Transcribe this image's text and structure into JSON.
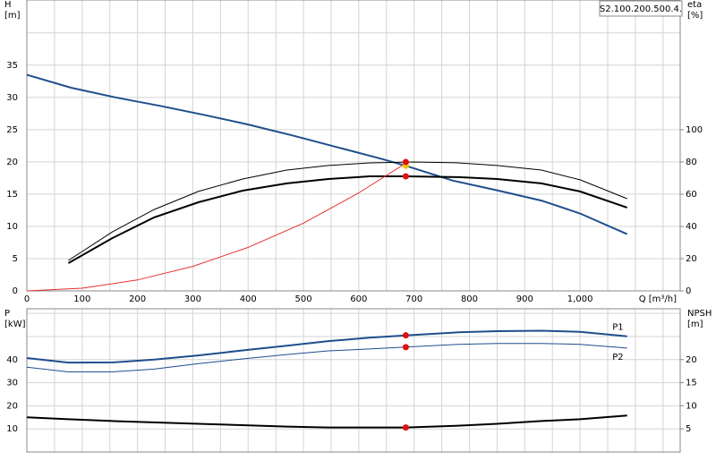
{
  "chart_data": [
    {
      "type": "line",
      "title": "S2.100.200.500.4.",
      "xlabel": "Q [m³/h]",
      "ylabel": [
        "H",
        "[m]"
      ],
      "y2label": [
        "eta",
        "[%]"
      ],
      "xlim": [
        0,
        1181
      ],
      "xticks": [
        0,
        100,
        200,
        300,
        400,
        500,
        600,
        700,
        800,
        900,
        {
          "value": 1000,
          "label": "1,000"
        }
      ],
      "xminor": [
        50,
        150,
        250,
        350,
        450,
        550,
        650,
        750,
        850,
        950,
        1050,
        1100,
        1150
      ],
      "ylim": [
        0,
        45.1
      ],
      "yticks": [
        0,
        5,
        10,
        15,
        20,
        25,
        30,
        35
      ],
      "yminor": [
        40
      ],
      "y2lim": [
        0,
        180.5
      ],
      "y2ticks": [
        0,
        20,
        40,
        60,
        80,
        100
      ],
      "grid": true,
      "series": [
        {
          "color": "#1f4e8c",
          "width": 2,
          "x": [
            0,
            80,
            160,
            240,
            320,
            400,
            480,
            560,
            640,
            685,
            770,
            850,
            930,
            1000,
            1085
          ],
          "values": [
            33.5,
            31.5,
            30,
            28.7,
            27.3,
            25.8,
            24.1,
            22.3,
            20.5,
            19.4,
            17.1,
            15.6,
            14,
            12,
            8.8
          ]
        },
        {
          "color": "#000000",
          "width": 1,
          "axis": "y2",
          "x": [
            75,
            155,
            230,
            310,
            390,
            470,
            545,
            620,
            700,
            780,
            850,
            930,
            1000,
            1085
          ],
          "values": [
            18.9,
            36.7,
            50.5,
            61.7,
            69.4,
            75,
            77.8,
            79.4,
            80,
            79.4,
            77.8,
            75,
            68.9,
            57.2
          ]
        },
        {
          "color": "#000000",
          "width": 2,
          "axis": "y2",
          "x": [
            75,
            155,
            230,
            310,
            390,
            470,
            545,
            620,
            685,
            780,
            850,
            930,
            1000,
            1085
          ],
          "values": [
            17.2,
            32.8,
            45.6,
            55,
            62.2,
            66.7,
            69.4,
            71.1,
            71.1,
            70.6,
            69.4,
            66.7,
            61.7,
            51.7
          ]
        },
        {
          "color": "#e83030",
          "width": 1,
          "x": [
            0,
            100,
            200,
            300,
            400,
            500,
            600,
            685
          ],
          "values": [
            0,
            0.42,
            1.69,
            3.8,
            6.75,
            10.5,
            15.2,
            19.8
          ]
        },
        {
          "color": "#f5c400",
          "style": "points",
          "x": [
            685
          ],
          "values": [
            19.4
          ]
        },
        {
          "color": "#e01010",
          "style": "points",
          "axis": "y2",
          "x": [
            685,
            685
          ],
          "values": [
            80,
            71.1
          ]
        }
      ]
    },
    {
      "type": "line",
      "ylabel": [
        "P",
        "[kW]"
      ],
      "y2label": [
        "NPSH",
        "[m]"
      ],
      "xlim": [
        0,
        1181
      ],
      "xticks": [
        0,
        100,
        200,
        300,
        400,
        500,
        600,
        700,
        800,
        900,
        1000
      ],
      "xminor": [
        50,
        150,
        250,
        350,
        450,
        550,
        650,
        750,
        850,
        950,
        1050,
        1100,
        1150
      ],
      "ylim": [
        0,
        62
      ],
      "yticks": [
        10,
        20,
        30,
        40
      ],
      "yminor": [
        50,
        60
      ],
      "y2lim": [
        0,
        31
      ],
      "y2ticks": [
        5,
        10,
        15,
        20
      ],
      "grid": true,
      "series": [
        {
          "name": "P1",
          "color": "#1f4e8c",
          "width": 2,
          "x": [
            0,
            75,
            155,
            230,
            310,
            390,
            470,
            545,
            620,
            685,
            780,
            850,
            930,
            1000,
            1085
          ],
          "values": [
            40.7,
            38.7,
            38.8,
            40,
            41.8,
            44,
            46,
            48,
            49.5,
            50.5,
            51.8,
            52.3,
            52.5,
            52,
            50.1
          ]
        },
        {
          "name": "P2",
          "color": "#1f4e8c",
          "width": 1,
          "x": [
            0,
            75,
            155,
            230,
            310,
            390,
            470,
            545,
            620,
            685,
            780,
            850,
            930,
            1000,
            1085
          ],
          "values": [
            36.7,
            34.7,
            34.7,
            35.9,
            38.3,
            40.3,
            42.2,
            43.8,
            44.6,
            45.4,
            46.6,
            47,
            47,
            46.6,
            45
          ]
        },
        {
          "color": "#000000",
          "width": 2,
          "axis": "y2",
          "x": [
            0,
            75,
            155,
            310,
            470,
            545,
            685,
            780,
            850,
            930,
            1000,
            1085
          ],
          "values": [
            7.5,
            7.1,
            6.7,
            6.1,
            5.5,
            5.3,
            5.3,
            5.7,
            6.1,
            6.7,
            7.1,
            7.9
          ]
        },
        {
          "color": "#e01010",
          "style": "points",
          "x": [
            685,
            685
          ],
          "values": [
            50.5,
            45.4
          ]
        },
        {
          "color": "#e01010",
          "style": "points",
          "axis": "y2",
          "x": [
            685
          ],
          "values": [
            5.3
          ]
        }
      ]
    }
  ]
}
